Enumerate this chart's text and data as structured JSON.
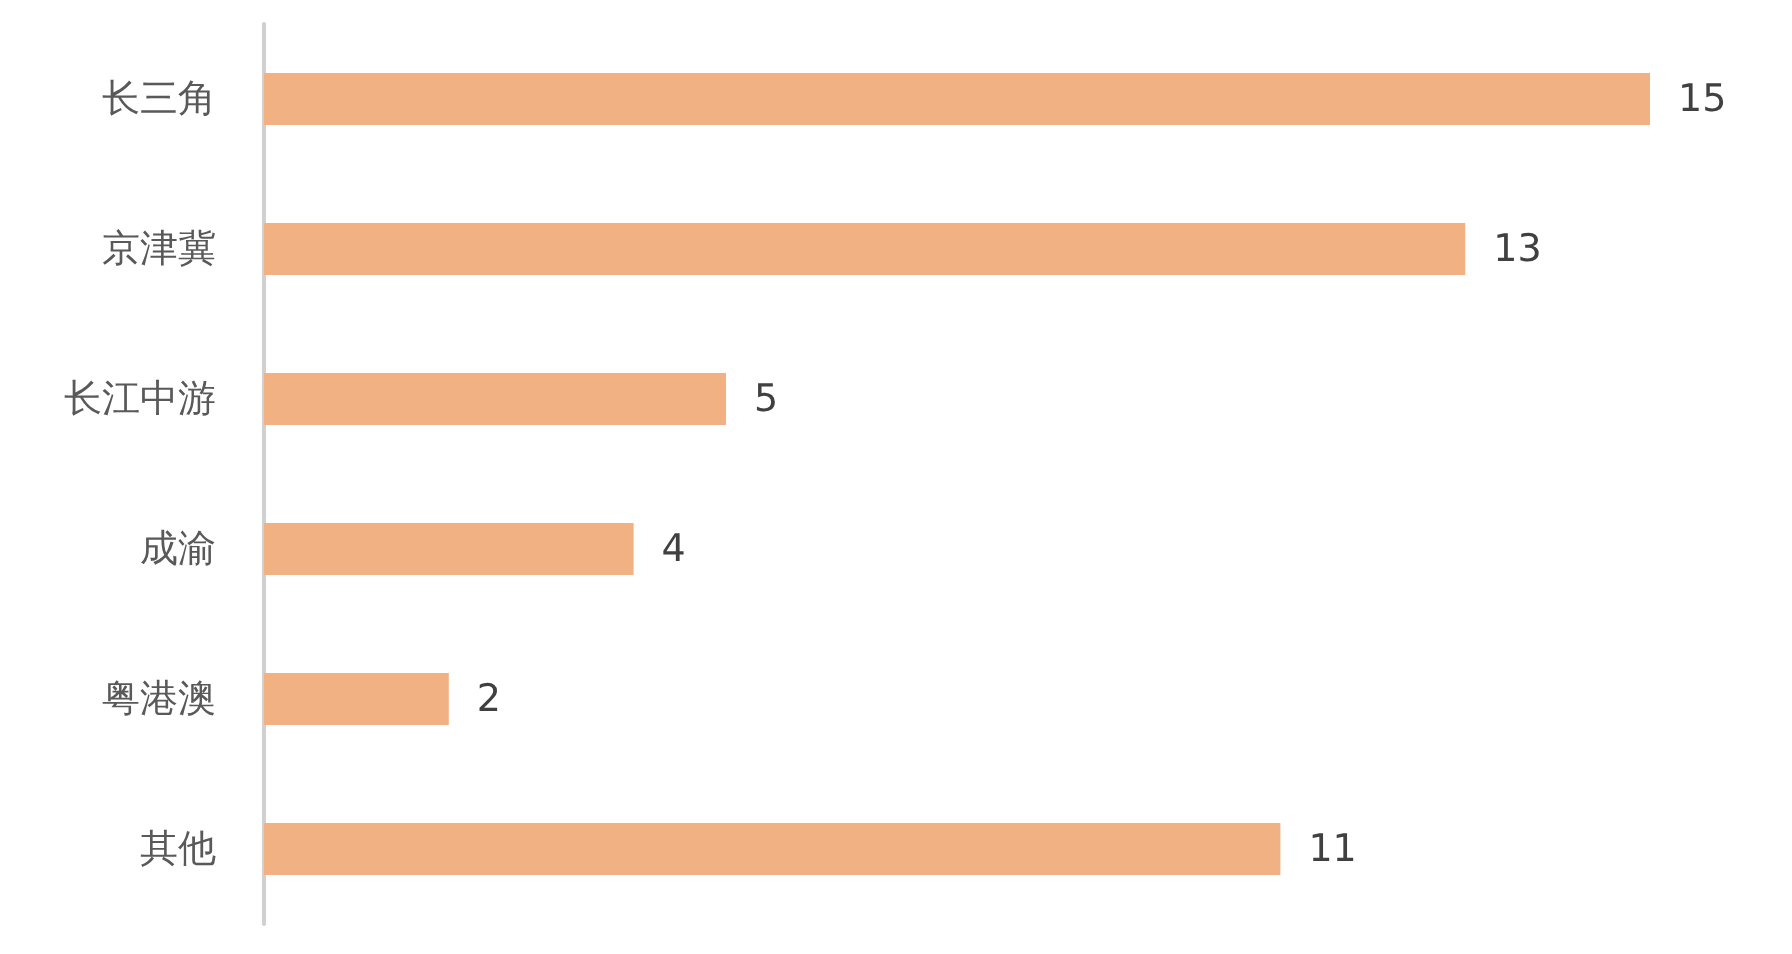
{
  "chart_data": {
    "type": "bar",
    "orientation": "horizontal",
    "categories": [
      "长三角",
      "京津冀",
      "长江中游",
      "成渝",
      "粤港澳",
      "其他"
    ],
    "values": [
      15,
      13,
      5,
      4,
      2,
      11
    ],
    "color": "#f2b183",
    "data_labels": true
  }
}
